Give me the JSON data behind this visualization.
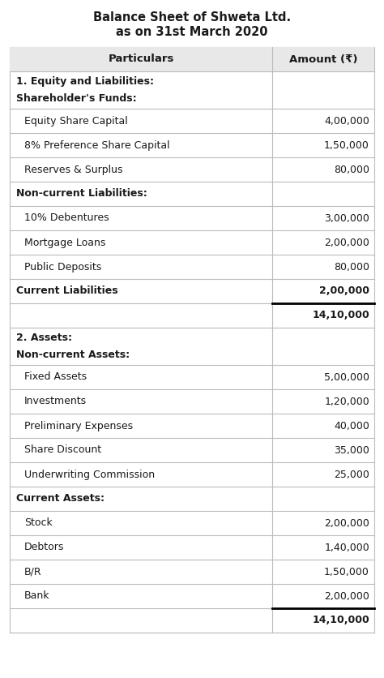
{
  "title_line1": "Balance Sheet of Shweta Ltd.",
  "title_line2": "as on 31st March 2020",
  "col_headers": [
    "Particulars",
    "Amount (₹)"
  ],
  "rows": [
    {
      "text": "1. Equity and Liabilities:\nShareholder's Funds:",
      "amount": "",
      "bold": true,
      "indent": false,
      "two_line": true
    },
    {
      "text": "Equity Share Capital",
      "amount": "4,00,000",
      "bold": false,
      "indent": true,
      "two_line": false
    },
    {
      "text": "8% Preference Share Capital",
      "amount": "1,50,000",
      "bold": false,
      "indent": true,
      "two_line": false
    },
    {
      "text": "Reserves & Surplus",
      "amount": "80,000",
      "bold": false,
      "indent": true,
      "two_line": false
    },
    {
      "text": "Non-current Liabilities:",
      "amount": "",
      "bold": true,
      "indent": false,
      "two_line": false
    },
    {
      "text": "10% Debentures",
      "amount": "3,00,000",
      "bold": false,
      "indent": true,
      "two_line": false
    },
    {
      "text": "Mortgage Loans",
      "amount": "2,00,000",
      "bold": false,
      "indent": true,
      "two_line": false
    },
    {
      "text": "Public Deposits",
      "amount": "80,000",
      "bold": false,
      "indent": true,
      "two_line": false
    },
    {
      "text": "Current Liabilities",
      "amount": "2,00,000",
      "bold": true,
      "indent": false,
      "two_line": false
    },
    {
      "text": "",
      "amount": "14,10,000",
      "bold": true,
      "indent": false,
      "two_line": false,
      "total": true
    },
    {
      "text": "2. Assets:\nNon-current Assets:",
      "amount": "",
      "bold": true,
      "indent": false,
      "two_line": true
    },
    {
      "text": "Fixed Assets",
      "amount": "5,00,000",
      "bold": false,
      "indent": true,
      "two_line": false
    },
    {
      "text": "Investments",
      "amount": "1,20,000",
      "bold": false,
      "indent": true,
      "two_line": false
    },
    {
      "text": "Preliminary Expenses",
      "amount": "40,000",
      "bold": false,
      "indent": true,
      "two_line": false
    },
    {
      "text": "Share Discount",
      "amount": "35,000",
      "bold": false,
      "indent": true,
      "two_line": false
    },
    {
      "text": "Underwriting Commission",
      "amount": "25,000",
      "bold": false,
      "indent": true,
      "two_line": false
    },
    {
      "text": "Current Assets:",
      "amount": "",
      "bold": true,
      "indent": false,
      "two_line": false
    },
    {
      "text": "Stock",
      "amount": "2,00,000",
      "bold": false,
      "indent": true,
      "two_line": false
    },
    {
      "text": "Debtors",
      "amount": "1,40,000",
      "bold": false,
      "indent": true,
      "two_line": false
    },
    {
      "text": "B/R",
      "amount": "1,50,000",
      "bold": false,
      "indent": true,
      "two_line": false
    },
    {
      "text": "Bank",
      "amount": "2,00,000",
      "bold": false,
      "indent": true,
      "two_line": false
    },
    {
      "text": "",
      "amount": "14,10,000",
      "bold": true,
      "indent": false,
      "two_line": false,
      "total": true
    }
  ],
  "col_split": 0.72,
  "header_bg": "#e8e8e8",
  "border_color": "#bbbbbb",
  "text_color": "#1a1a1a",
  "title_fontsize": 10.5,
  "body_fontsize": 9,
  "header_fontsize": 9.5
}
